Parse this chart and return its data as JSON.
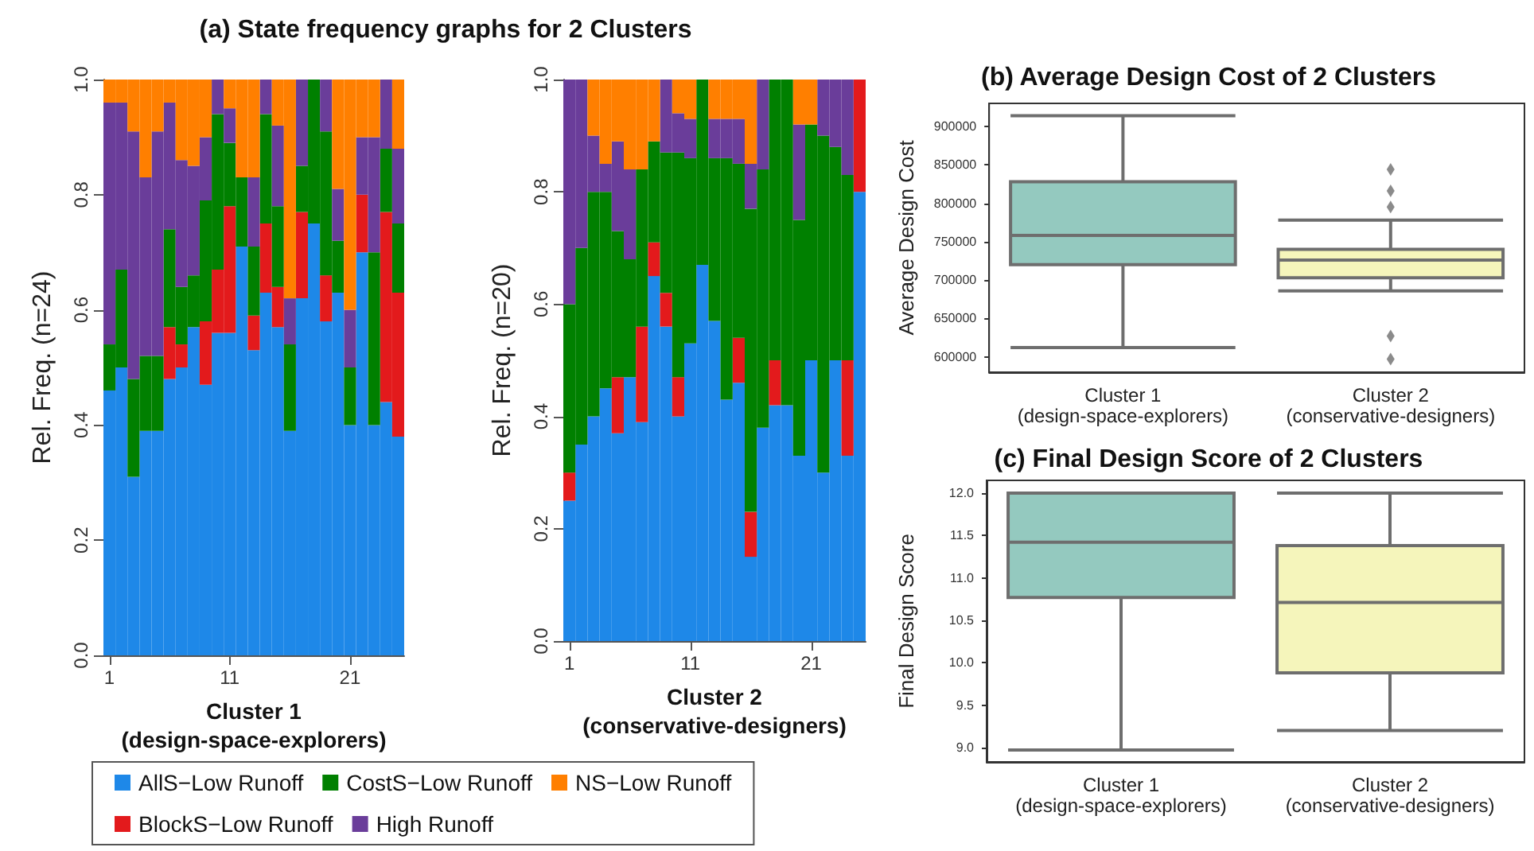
{
  "chart_data": [
    {
      "type": "bar",
      "title": "(a) State frequency graphs for 2 Clusters",
      "xlabel": "Cluster 1\n(design-space-explorers)",
      "ylabel": "Rel. Freq. (n=24)",
      "stacked": true,
      "legend": "bottom",
      "ylim": [
        0,
        1
      ],
      "yticks": [
        {
          "value": 0,
          "label": "0.0"
        },
        0.2,
        0.4,
        0.6,
        0.8,
        {
          "value": 1,
          "label": "1.0"
        }
      ],
      "categories": [
        "1",
        null,
        null,
        null,
        null,
        null,
        null,
        null,
        null,
        null,
        "11",
        null,
        null,
        null,
        null,
        null,
        null,
        null,
        null,
        null,
        "21",
        null,
        null,
        null,
        null
      ],
      "series": [
        {
          "name": "AllS−Low Runoff",
          "color": "#1e88e8",
          "values": [
            0.46,
            0.5,
            0.31,
            0.39,
            0.39,
            0.48,
            0.5,
            0.57,
            0.47,
            0.56,
            0.56,
            0.71,
            0.53,
            0.63,
            0.57,
            0.39,
            0.62,
            0.75,
            0.58,
            0.63,
            0.4,
            0.7,
            0.4,
            0.44,
            0.38
          ]
        },
        {
          "name": "BlockS−Low Runoff",
          "color": "#e31a1c",
          "values": [
            0,
            0,
            0,
            0,
            0,
            0.09,
            0.04,
            0,
            0.11,
            0.11,
            0.22,
            0,
            0.06,
            0.12,
            0.07,
            0,
            0.15,
            0,
            0.08,
            0,
            0,
            0.1,
            0,
            0.33,
            0.25
          ]
        },
        {
          "name": "CostS−Low Runoff",
          "color": "#008000",
          "values": [
            0.08,
            0.17,
            0.17,
            0.13,
            0.13,
            0.17,
            0.1,
            0.09,
            0.21,
            0.27,
            0.11,
            0.12,
            0.12,
            0.19,
            0.14,
            0.15,
            0.08,
            0.25,
            0.25,
            0.09,
            0.1,
            0,
            0.3,
            0.11,
            0.12
          ]
        },
        {
          "name": "High Runoff",
          "color": "#6a3d9a",
          "values": [
            0.42,
            0.29,
            0.43,
            0.31,
            0.39,
            0.22,
            0.22,
            0.19,
            0.11,
            0.06,
            0.06,
            0,
            0.12,
            0.06,
            0.14,
            0.08,
            0.15,
            0,
            0.09,
            0.09,
            0.1,
            0.1,
            0.2,
            0.12,
            0.13
          ]
        },
        {
          "name": "NS−Low Runoff",
          "color": "#ff7f00",
          "values": [
            0.04,
            0.04,
            0.09,
            0.17,
            0.09,
            0.04,
            0.14,
            0.15,
            0.1,
            0,
            0.05,
            0.17,
            0.17,
            0,
            0.08,
            0.38,
            0,
            0,
            0,
            0.19,
            0.4,
            0.1,
            0.1,
            0,
            0.12
          ]
        }
      ]
    },
    {
      "type": "bar",
      "xlabel": "Cluster 2\n(conservative-designers)",
      "ylabel": "Rel. Freq. (n=20)",
      "stacked": true,
      "ylim": [
        0,
        1
      ],
      "yticks": [
        {
          "value": 0,
          "label": "0.0"
        },
        0.2,
        0.4,
        0.6,
        0.8,
        {
          "value": 1,
          "label": "1.0"
        }
      ],
      "categories": [
        "1",
        null,
        null,
        null,
        null,
        null,
        null,
        null,
        null,
        null,
        "11",
        null,
        null,
        null,
        null,
        null,
        null,
        null,
        null,
        null,
        "21",
        null,
        null,
        null,
        null
      ],
      "series": [
        {
          "color": "#1e88e8",
          "values": [
            0.25,
            0.35,
            0.4,
            0.45,
            0.37,
            0.47,
            0.39,
            0.65,
            0.56,
            0.4,
            0.53,
            0.67,
            0.57,
            0.43,
            0.46,
            0.15,
            0.38,
            0.42,
            0.42,
            0.33,
            0.5,
            0.3,
            0.5,
            0.33,
            0.8
          ]
        },
        {
          "color": "#e31a1c",
          "values": [
            0.05,
            0,
            0,
            0,
            0.1,
            0,
            0.17,
            0.06,
            0.06,
            0.07,
            0,
            0,
            0,
            0,
            0.08,
            0.08,
            0,
            0.08,
            0,
            0,
            0,
            0,
            0,
            0.17,
            0.2
          ]
        },
        {
          "color": "#008000",
          "values": [
            0.3,
            0.35,
            0.4,
            0.35,
            0.26,
            0.21,
            0.28,
            0.18,
            0.25,
            0.4,
            0.33,
            0.33,
            0.29,
            0.43,
            0.31,
            0.54,
            0.46,
            0.5,
            0.58,
            0.42,
            0.42,
            0.6,
            0.38,
            0.33,
            0
          ]
        },
        {
          "color": "#6a3d9a",
          "values": [
            0.4,
            0.3,
            0.1,
            0.05,
            0.16,
            0.16,
            0,
            0,
            0.13,
            0.07,
            0.07,
            0,
            0.07,
            0.07,
            0.08,
            0.08,
            0.16,
            0,
            0,
            0.17,
            0,
            0.1,
            0.12,
            0.17,
            0
          ]
        },
        {
          "color": "#ff7f00",
          "values": [
            0,
            0,
            0.1,
            0.15,
            0.11,
            0.16,
            0.16,
            0.11,
            0,
            0.06,
            0.07,
            0,
            0.07,
            0.07,
            0.07,
            0.15,
            0,
            0,
            0,
            0.08,
            0.08,
            0,
            0,
            0,
            0
          ]
        }
      ]
    },
    {
      "type": "box",
      "title": "(b) Average Design Cost of 2 Clusters",
      "ylabel": "Average Design Cost",
      "marker": "diamond",
      "categories": [
        "Cluster 1\n(design-space-explorers)",
        "Cluster 2\n(conservative-designers)"
      ],
      "colors": [
        "#94c9bf",
        "#f5f5bb"
      ],
      "ylim": [
        580000,
        930000
      ],
      "yticks": [
        600000,
        650000,
        700000,
        750000,
        800000,
        850000,
        900000
      ],
      "boxes": [
        {
          "low": 612000,
          "q1": 720000,
          "median": 758000,
          "q3": 828000,
          "high": 914000
        },
        {
          "low": 686000,
          "q1": 703000,
          "median": 726000,
          "q3": 740000,
          "high": 778000,
          "outliers": [
            844000,
            816000,
            795000,
            627000,
            597000
          ]
        }
      ]
    },
    {
      "type": "box",
      "title": "(c) Final Design Score of 2 Clusters",
      "ylabel": "Final Design Score",
      "categories": [
        "Cluster 1\n(design-space-explorers)",
        "Cluster 2\n(conservative-designers)"
      ],
      "colors": [
        "#94c9bf",
        "#f5f5bb"
      ],
      "ylim": [
        8.83,
        12.15
      ],
      "yticks": [
        {
          "value": 9,
          "label": "9.0"
        },
        9.5,
        {
          "value": 10,
          "label": "10.0"
        },
        10.5,
        {
          "value": 11,
          "label": "11.0"
        },
        11.5,
        {
          "value": 12,
          "label": "12.0"
        }
      ],
      "boxes": [
        {
          "low": 8.97,
          "q1": 10.77,
          "median": 11.42,
          "q3": 12.0,
          "high": 12.0
        },
        {
          "low": 9.2,
          "q1": 9.88,
          "median": 10.71,
          "q3": 11.38,
          "high": 12.0
        }
      ]
    }
  ]
}
